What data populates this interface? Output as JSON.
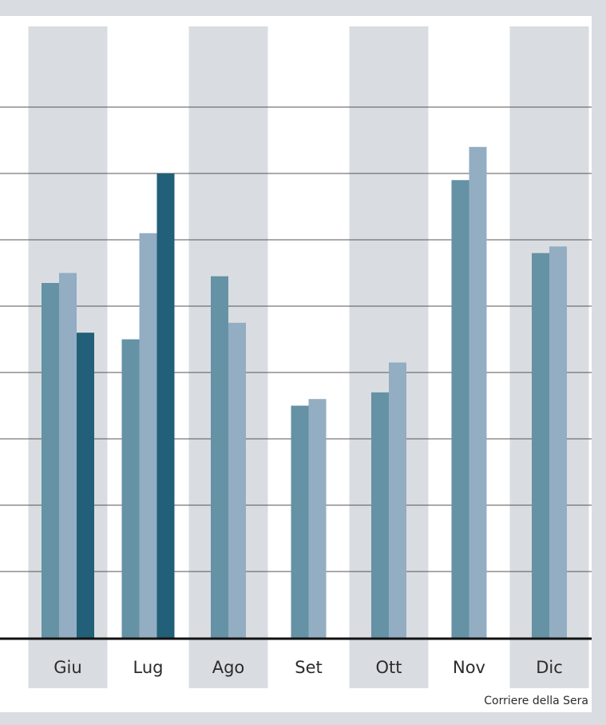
{
  "chart_data": {
    "type": "bar",
    "categories": [
      "Giu",
      "Lug",
      "Ago",
      "Set",
      "Ott",
      "Nov",
      "Dic"
    ],
    "series": [
      {
        "values": [
          5.35,
          4.5,
          5.45,
          3.5,
          3.7,
          6.9,
          5.8
        ],
        "color": "#6592a4"
      },
      {
        "values": [
          5.5,
          6.1,
          4.75,
          3.6,
          4.15,
          7.4,
          5.9
        ],
        "color": "#93adc2"
      },
      {
        "values": [
          4.6,
          7.0,
          null,
          null,
          null,
          null,
          null
        ],
        "color": "#225f78"
      }
    ],
    "ylim": [
      0,
      9
    ],
    "grid": true,
    "grid_color": "#555555",
    "band_color": "#d9dde1",
    "source": "Corriere della Sera"
  }
}
